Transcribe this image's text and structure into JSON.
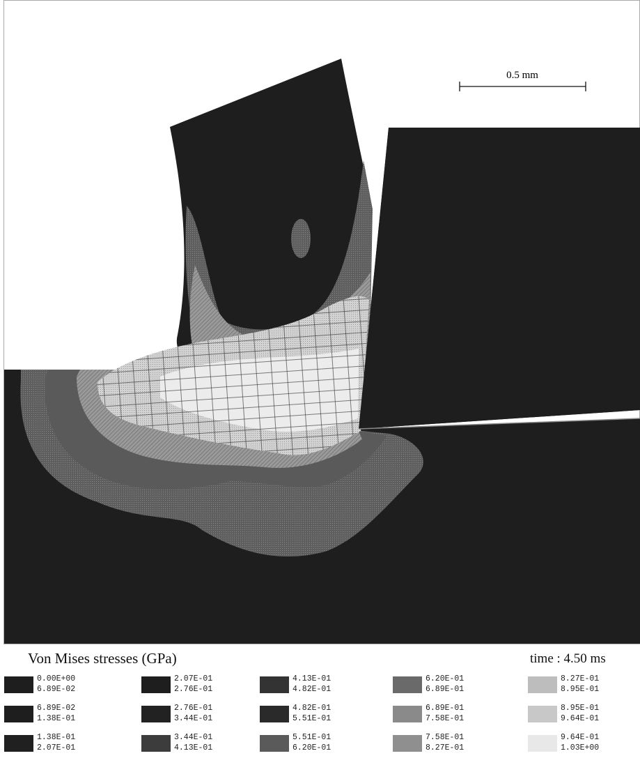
{
  "scale_bar": {
    "label": "0.5 mm"
  },
  "legend": {
    "title": "Von Mises stresses (GPa)",
    "time": "time : 4.50 ms",
    "bins": [
      {
        "lo": "0.00E+00",
        "hi": "6.89E-02",
        "color": "#1e1e1e"
      },
      {
        "lo": "6.89E-02",
        "hi": "1.38E-01",
        "color": "#1e1e1e"
      },
      {
        "lo": "1.38E-01",
        "hi": "2.07E-01",
        "color": "#202020"
      },
      {
        "lo": "2.07E-01",
        "hi": "2.76E-01",
        "color": "#1e1e1e"
      },
      {
        "lo": "2.76E-01",
        "hi": "3.44E-01",
        "color": "#222222"
      },
      {
        "lo": "3.44E-01",
        "hi": "4.13E-01",
        "color": "#3c3c3c"
      },
      {
        "lo": "4.13E-01",
        "hi": "4.82E-01",
        "color": "#333333"
      },
      {
        "lo": "4.82E-01",
        "hi": "5.51E-01",
        "color": "#2a2a2a"
      },
      {
        "lo": "5.51E-01",
        "hi": "6.20E-01",
        "color": "#5a5a5a"
      },
      {
        "lo": "6.20E-01",
        "hi": "6.89E-01",
        "color": "#6a6a6a"
      },
      {
        "lo": "6.89E-01",
        "hi": "7.58E-01",
        "color": "#8a8a8a"
      },
      {
        "lo": "7.58E-01",
        "hi": "8.27E-01",
        "color": "#8f8f8f"
      },
      {
        "lo": "8.27E-01",
        "hi": "8.95E-01",
        "color": "#bdbdbd"
      },
      {
        "lo": "8.95E-01",
        "hi": "9.64E-01",
        "color": "#c8c8c8"
      },
      {
        "lo": "9.64E-01",
        "hi": "1.03E+00",
        "color": "#e8e8e8"
      }
    ]
  }
}
